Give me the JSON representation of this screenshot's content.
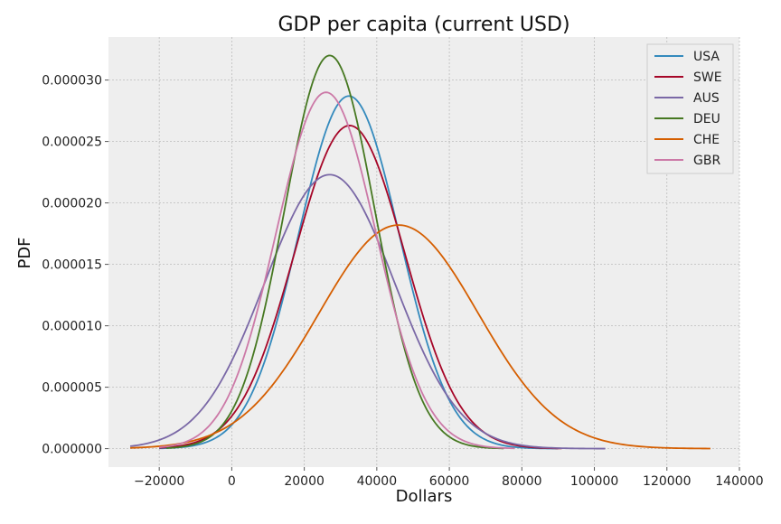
{
  "chart_data": {
    "type": "line",
    "title": "GDP per capita (current USD)",
    "xlabel": "Dollars",
    "ylabel": "PDF",
    "xlim": [
      -34000,
      140000
    ],
    "ylim": [
      -1.5e-06,
      3.35e-05
    ],
    "xticks": [
      -20000,
      0,
      20000,
      40000,
      60000,
      80000,
      100000,
      120000,
      140000
    ],
    "xtick_labels": [
      "−20000",
      "0",
      "20000",
      "40000",
      "60000",
      "80000",
      "100000",
      "120000",
      "140000"
    ],
    "yticks": [
      0,
      5e-06,
      1e-05,
      1.5e-05,
      2e-05,
      2.5e-05,
      3e-05
    ],
    "ytick_labels": [
      "0.000000",
      "0.000005",
      "0.000010",
      "0.000015",
      "0.000020",
      "0.000025",
      "0.000030"
    ],
    "grid": true,
    "legend_position": "top-right",
    "style": {
      "background": "#eeeeee",
      "grid_color": "#bcbcbc"
    },
    "series": [
      {
        "name": "USA",
        "color": "#348abd",
        "mean": 32300,
        "peak": 2.87e-05,
        "x_range": [
          -20000,
          90000
        ]
      },
      {
        "name": "SWE",
        "color": "#a60628",
        "mean": 32500,
        "peak": 2.63e-05,
        "x_range": [
          -20000,
          91000
        ]
      },
      {
        "name": "AUS",
        "color": "#7a68a6",
        "mean": 27000,
        "peak": 2.23e-05,
        "x_range": [
          -28000,
          103000
        ]
      },
      {
        "name": "DEU",
        "color": "#467821",
        "mean": 27000,
        "peak": 3.2e-05,
        "x_range": [
          -18000,
          75000
        ]
      },
      {
        "name": "CHE",
        "color": "#d55e00",
        "mean": 46000,
        "peak": 1.82e-05,
        "x_range": [
          -28000,
          132000
        ]
      },
      {
        "name": "GBR",
        "color": "#cc79a7",
        "mean": 26000,
        "peak": 2.9e-05,
        "x_range": [
          -20000,
          78000
        ]
      }
    ]
  }
}
